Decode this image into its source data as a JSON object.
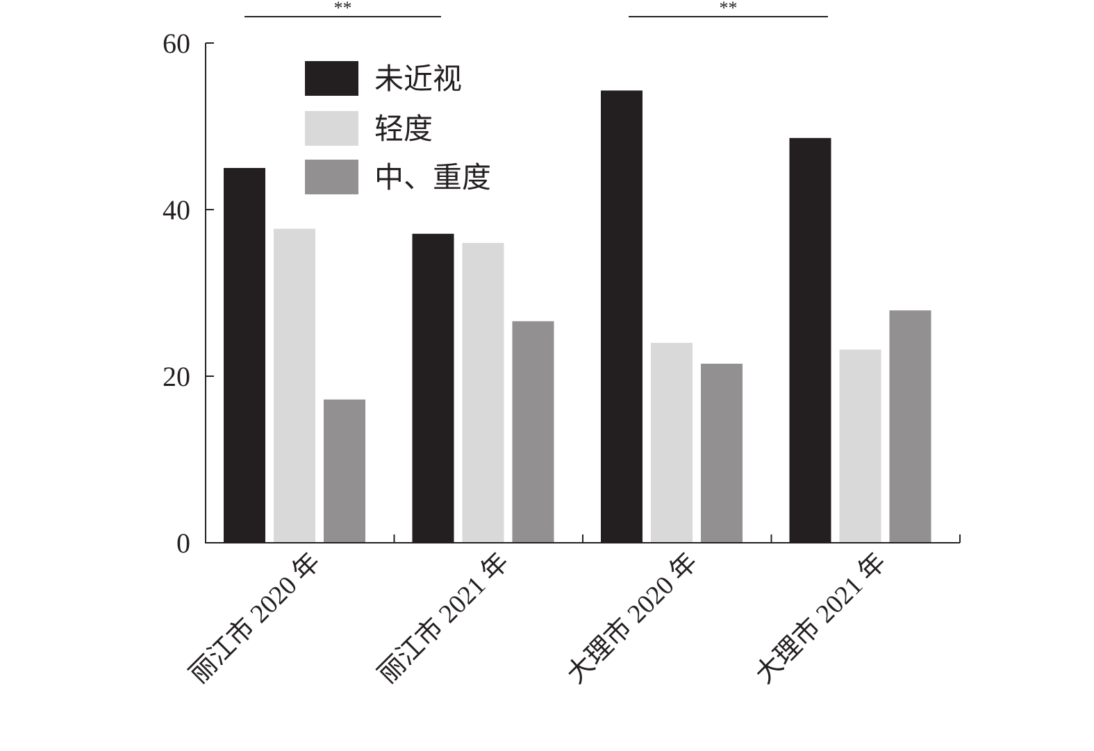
{
  "chart_data": {
    "type": "bar",
    "title": "",
    "xlabel": "",
    "ylabel": "",
    "ylim": [
      0,
      60
    ],
    "yticks": [
      0,
      20,
      40,
      60
    ],
    "yticklabels": [
      "0",
      "20",
      "40",
      "60"
    ],
    "categories": [
      "丽江市 2020 年",
      "丽江市 2021 年",
      "大理市 2020 年",
      "大理市 2021 年"
    ],
    "series": [
      {
        "name": "未近视",
        "color": "#231f20",
        "values": [
          45.0,
          37.1,
          54.3,
          48.6
        ]
      },
      {
        "name": "轻度",
        "color": "#d9d9d9",
        "values": [
          37.7,
          36.0,
          24.0,
          23.2
        ]
      },
      {
        "name": "中、重度",
        "color": "#929091",
        "values": [
          17.2,
          26.6,
          21.5,
          27.9
        ]
      }
    ],
    "legend_position": "top-left",
    "significance": [
      {
        "label": "**",
        "from_category": 0,
        "to_category": 1
      },
      {
        "label": "**",
        "from_category": 2,
        "to_category": 3
      }
    ],
    "grid": false
  }
}
